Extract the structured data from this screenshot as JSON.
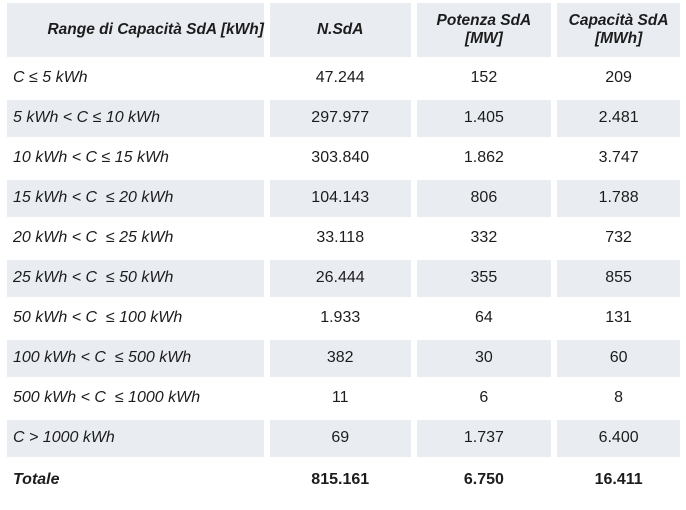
{
  "colors": {
    "row_shade": "#e9edf2",
    "text": "#1c1c1c",
    "background": "#ffffff"
  },
  "chart_data": {
    "type": "table",
    "columns": [
      {
        "label": "Range di Capacità SdA [kWh]",
        "unit": ""
      },
      {
        "label": "N.SdA",
        "unit": ""
      },
      {
        "label": "Potenza SdA",
        "unit": "[MW]"
      },
      {
        "label": "Capacità SdA",
        "unit": "[MWh]"
      }
    ],
    "rows": [
      {
        "label": "C ≤ 5 kWh",
        "values": [
          "47.244",
          "152",
          "209"
        ]
      },
      {
        "label": "5 kWh < C ≤ 10 kWh",
        "values": [
          "297.977",
          "1.405",
          "2.481"
        ]
      },
      {
        "label": "10 kWh < C ≤ 15 kWh",
        "values": [
          "303.840",
          "1.862",
          "3.747"
        ]
      },
      {
        "label": "15 kWh < C  ≤ 20 kWh",
        "values": [
          "104.143",
          "806",
          "1.788"
        ]
      },
      {
        "label": "20 kWh < C  ≤ 25 kWh",
        "values": [
          "33.118",
          "332",
          "732"
        ]
      },
      {
        "label": "25 kWh < C  ≤ 50 kWh",
        "values": [
          "26.444",
          "355",
          "855"
        ]
      },
      {
        "label": "50 kWh < C  ≤ 100 kWh",
        "values": [
          "1.933",
          "64",
          "131"
        ]
      },
      {
        "label": "100 kWh < C  ≤ 500 kWh",
        "values": [
          "382",
          "30",
          "60"
        ]
      },
      {
        "label": "500 kWh < C  ≤ 1000 kWh",
        "values": [
          "11",
          "6",
          "8"
        ]
      },
      {
        "label": "C > 1000 kWh",
        "values": [
          "69",
          "1.737",
          "6.400"
        ]
      }
    ],
    "total": {
      "label": "Totale",
      "values": [
        "815.161",
        "6.750",
        "16.411"
      ]
    }
  }
}
